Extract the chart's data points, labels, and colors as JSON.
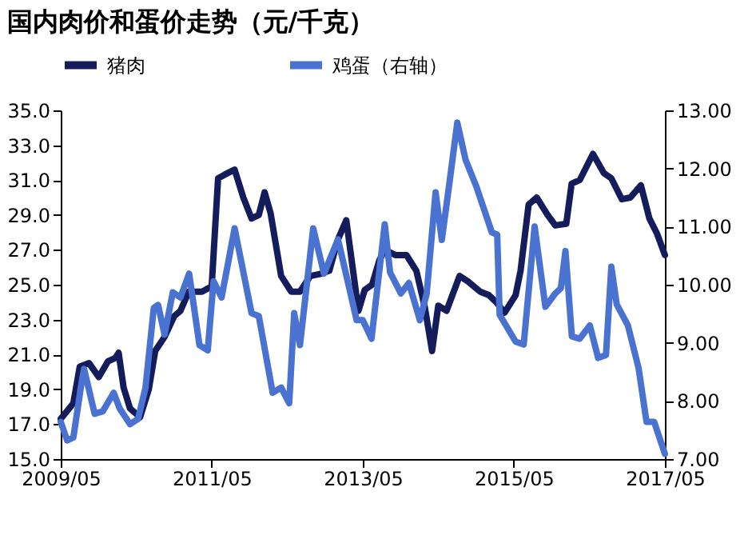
{
  "chart_data": {
    "type": "line",
    "title": "国内肉价和蛋价走势（元/千克）",
    "x": [
      "2009-05-01",
      "2009-07-01",
      "2009-08-01",
      "2009-09-15",
      "2009-11-01",
      "2009-12-15",
      "2010-01-20",
      "2010-02-05",
      "2010-03-01",
      "2010-04-01",
      "2010-05-20",
      "2010-07-01",
      "2010-08-01",
      "2010-09-15",
      "2010-11-01",
      "2010-12-01",
      "2011-01-10",
      "2011-03-15",
      "2011-05-01",
      "2011-06-01",
      "2011-07-01",
      "2011-08-20",
      "2011-10-01",
      "2011-11-10",
      "2011-12-15",
      "2012-01-12",
      "2012-02-10",
      "2012-04-01",
      "2012-05-20",
      "2012-07-01",
      "2012-08-20",
      "2012-10-01",
      "2012-11-20",
      "2013-01-01",
      "2013-02-10",
      "2013-04-10",
      "2013-05-10",
      "2013-06-15",
      "2013-07-20",
      "2013-08-15",
      "2013-10-05",
      "2013-11-28",
      "2014-01-15",
      "2014-02-25",
      "2014-04-01",
      "2014-05-01",
      "2014-06-10",
      "2014-08-12",
      "2014-09-20",
      "2014-11-20",
      "2015-01-01",
      "2015-02-05",
      "2015-03-18",
      "2015-05-10",
      "2015-06-03",
      "2015-07-12",
      "2015-08-20",
      "2015-10-12",
      "2015-11-18",
      "2016-01-10",
      "2016-02-05",
      "2016-03-15",
      "2016-05-18",
      "2016-07-10",
      "2016-08-15",
      "2016-10-05",
      "2016-11-15",
      "2017-01-05",
      "2017-02-15",
      "2017-03-25",
      "2017-05-01"
    ],
    "series": [
      {
        "name": "猪肉",
        "color": "#141c5c",
        "values": [
          17.3,
          18.2,
          20.3,
          20.5,
          19.7,
          20.6,
          20.8,
          21.1,
          19.1,
          17.9,
          17.4,
          19.0,
          21.2,
          22.0,
          23.2,
          23.5,
          24.6,
          24.6,
          24.9,
          31.1,
          31.3,
          31.6,
          30.0,
          28.8,
          29.0,
          30.3,
          29.1,
          25.5,
          24.6,
          24.6,
          25.5,
          25.6,
          25.8,
          27.6,
          28.7,
          23.5,
          24.7,
          25.0,
          26.4,
          27.0,
          26.7,
          26.7,
          25.8,
          23.7,
          21.2,
          23.8,
          23.5,
          25.5,
          25.2,
          24.6,
          24.4,
          24.0,
          23.4,
          24.4,
          25.8,
          29.6,
          30.0,
          29.0,
          28.4,
          28.5,
          30.8,
          31.0,
          32.5,
          31.4,
          31.1,
          29.9,
          30.0,
          30.7,
          28.8,
          27.9,
          26.7
        ]
      },
      {
        "name": "鸡蛋（右轴）",
        "color": "#4a72d0",
        "axis": "y2",
        "x": [
          "2009-05-01",
          "2009-06-01",
          "2009-07-01",
          "2009-08-10",
          "2009-08-22",
          "2009-10-12",
          "2009-11-20",
          "2010-01-12",
          "2010-02-10",
          "2010-04-01",
          "2010-05-10",
          "2010-06-15",
          "2010-07-25",
          "2010-08-15",
          "2010-09-15",
          "2010-10-25",
          "2010-12-01",
          "2011-01-12",
          "2011-03-03",
          "2011-04-12",
          "2011-05-10",
          "2011-06-18",
          "2011-08-20",
          "2011-11-10",
          "2011-12-15",
          "2012-02-20",
          "2012-04-01",
          "2012-05-10",
          "2012-06-03",
          "2012-07-01",
          "2012-09-03",
          "2012-10-25",
          "2013-01-01",
          "2013-02-20",
          "2013-04-01",
          "2013-05-01",
          "2013-06-12",
          "2013-08-15",
          "2013-09-10",
          "2013-11-01",
          "2013-12-10",
          "2014-02-01",
          "2014-03-06",
          "2014-04-18",
          "2014-05-18",
          "2014-06-25",
          "2014-08-01",
          "2014-09-10",
          "2014-11-01",
          "2015-01-15",
          "2015-02-10",
          "2015-02-22",
          "2015-05-10",
          "2015-06-18",
          "2015-08-10",
          "2015-10-01",
          "2015-11-18",
          "2015-12-15",
          "2016-01-06",
          "2016-02-06",
          "2016-03-15",
          "2016-05-03",
          "2016-06-12",
          "2016-07-20",
          "2016-08-15",
          "2016-09-10",
          "2016-11-03",
          "2016-12-25",
          "2017-02-01",
          "2017-03-10",
          "2017-05-01"
        ],
        "values": [
          7.64,
          7.32,
          7.37,
          8.32,
          8.55,
          7.78,
          7.82,
          8.14,
          7.87,
          7.6,
          7.69,
          8.23,
          9.6,
          9.65,
          9.14,
          9.87,
          9.78,
          10.19,
          8.96,
          8.87,
          10.06,
          9.78,
          10.97,
          9.51,
          9.46,
          8.14,
          8.23,
          7.96,
          9.51,
          8.96,
          10.97,
          10.19,
          10.78,
          10.01,
          9.39,
          9.39,
          9.07,
          11.04,
          10.21,
          9.85,
          10.03,
          9.39,
          9.85,
          11.59,
          10.77,
          11.78,
          12.79,
          12.15,
          11.69,
          10.9,
          10.86,
          9.48,
          9.02,
          8.97,
          11.0,
          9.62,
          9.85,
          9.94,
          10.58,
          9.11,
          9.07,
          9.3,
          8.74,
          8.79,
          10.31,
          9.66,
          9.3,
          8.56,
          7.64,
          7.64,
          7.09
        ]
      }
    ],
    "xlim": [
      "2009-05-01",
      "2017-05-01"
    ],
    "xticks": [
      {
        "value": "2009-05-01",
        "label": "2009/05"
      },
      {
        "value": "2011-05-01",
        "label": "2011/05"
      },
      {
        "value": "2013-05-01",
        "label": "2013/05"
      },
      {
        "value": "2015-05-01",
        "label": "2015/05"
      },
      {
        "value": "2017-05-01",
        "label": "2017/05"
      }
    ],
    "ylim": [
      15,
      35
    ],
    "yticks": [
      {
        "value": 15,
        "label": "15.0"
      },
      {
        "value": 17,
        "label": "17.0"
      },
      {
        "value": 19,
        "label": "19.0"
      },
      {
        "value": 21,
        "label": "21.0"
      },
      {
        "value": 23,
        "label": "23.0"
      },
      {
        "value": 25,
        "label": "25.0"
      },
      {
        "value": 27,
        "label": "27.0"
      },
      {
        "value": 29,
        "label": "29.0"
      },
      {
        "value": 31,
        "label": "31.0"
      },
      {
        "value": 33,
        "label": "33.0"
      },
      {
        "value": 35,
        "label": "35.0"
      }
    ],
    "y2lim": [
      7,
      13
    ],
    "y2ticks": [
      {
        "value": 7,
        "label": "7.00"
      },
      {
        "value": 8,
        "label": "8.00"
      },
      {
        "value": 9,
        "label": "9.00"
      },
      {
        "value": 10,
        "label": "10.00"
      },
      {
        "value": 11,
        "label": "11.00"
      },
      {
        "value": 12,
        "label": "12.00"
      },
      {
        "value": 13,
        "label": "13.00"
      }
    ],
    "grid": false,
    "legend": "top",
    "marker": "none",
    "line_style": "solid"
  }
}
